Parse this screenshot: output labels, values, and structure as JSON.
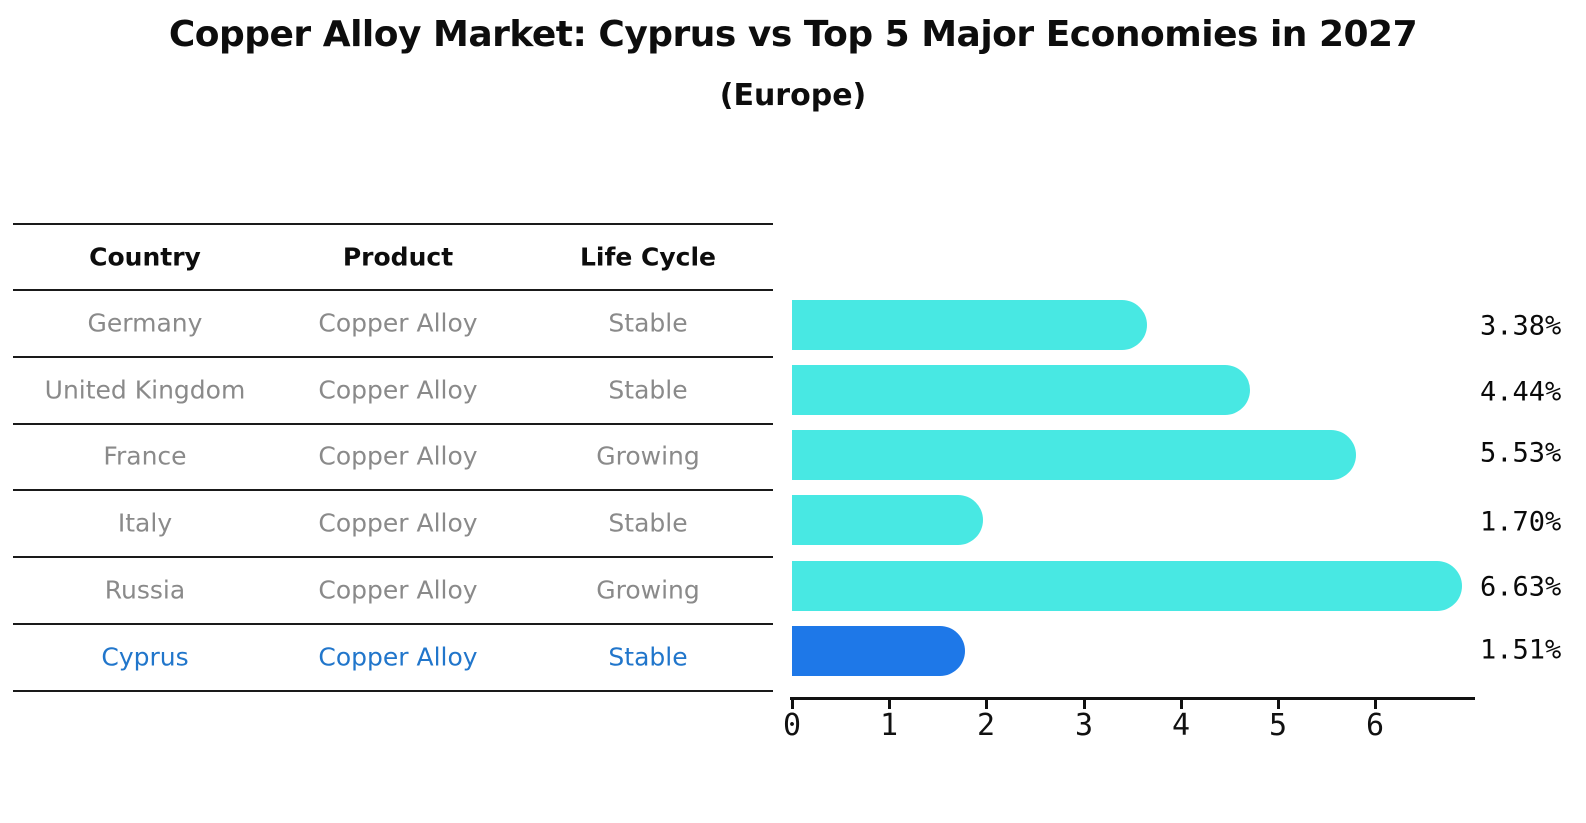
{
  "title": "Copper Alloy Market: Cyprus vs Top 5 Major Economies in 2027",
  "subtitle": "(Europe)",
  "table": {
    "headers": [
      "Country",
      "Product",
      "Life Cycle"
    ],
    "rows": [
      {
        "country": "Germany",
        "product": "Copper Alloy",
        "life_cycle": "Stable",
        "highlight": false
      },
      {
        "country": "United Kingdom",
        "product": "Copper Alloy",
        "life_cycle": "Stable",
        "highlight": false
      },
      {
        "country": "France",
        "product": "Copper Alloy",
        "life_cycle": "Growing",
        "highlight": false
      },
      {
        "country": "Italy",
        "product": "Copper Alloy",
        "life_cycle": "Stable",
        "highlight": false
      },
      {
        "country": "Russia",
        "product": "Copper Alloy",
        "life_cycle": "Growing",
        "highlight": false
      },
      {
        "country": "Cyprus",
        "product": "Copper Alloy",
        "life_cycle": "Stable",
        "highlight": true
      }
    ]
  },
  "chart_data": {
    "type": "bar",
    "orientation": "horizontal",
    "title": "Copper Alloy Market: Cyprus vs Top 5 Major Economies in 2027 (Europe)",
    "categories": [
      "Germany",
      "United Kingdom",
      "France",
      "Italy",
      "Russia",
      "Cyprus"
    ],
    "values": [
      3.38,
      4.44,
      5.53,
      1.7,
      6.63,
      1.51
    ],
    "value_labels": [
      "3.38%",
      "4.44%",
      "5.53%",
      "1.70%",
      "6.63%",
      "1.51%"
    ],
    "highlight_index": 5,
    "xticks": [
      "0",
      "1",
      "2",
      "3",
      "4",
      "5",
      "6"
    ],
    "xlim": [
      0,
      7
    ],
    "grid": false,
    "legend": false,
    "bar_color": "#48E8E3",
    "highlight_bar_color": "#1E78E8",
    "highlight_text_color": "#2176CB",
    "row_text_color": "#8A8A8A"
  }
}
